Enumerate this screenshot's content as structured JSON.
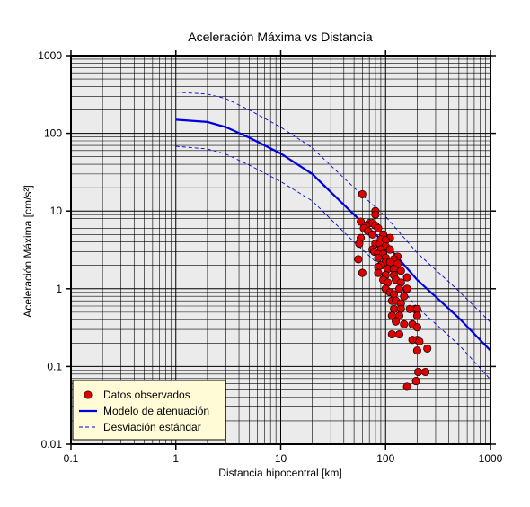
{
  "chart_data": {
    "type": "scatter",
    "title": "Aceleración Máxima vs Distancia",
    "xlabel": "Distancia hipocentral [km]",
    "ylabel": "Aceleración Máxima [cm/s²]",
    "xscale": "log",
    "yscale": "log",
    "xlim": [
      0.1,
      1000
    ],
    "ylim": [
      0.01,
      1000
    ],
    "x_tick_labels": [
      "0.1",
      "1",
      "10",
      "100",
      "1000"
    ],
    "y_tick_labels": [
      "0.01",
      "0.1",
      "1",
      "10",
      "100",
      "1000"
    ],
    "grid": true,
    "legend_position": "bottom-left",
    "series": [
      {
        "name": "Datos observados",
        "type": "scatter",
        "color": "#e00000",
        "points": [
          [
            60,
            16.5
          ],
          [
            80,
            10
          ],
          [
            80,
            9
          ],
          [
            58,
            7.3
          ],
          [
            70,
            7
          ],
          [
            75,
            7
          ],
          [
            65,
            6.5
          ],
          [
            80,
            6.5
          ],
          [
            62,
            6
          ],
          [
            85,
            6
          ],
          [
            68,
            5.5
          ],
          [
            75,
            5
          ],
          [
            95,
            5
          ],
          [
            58,
            4.5
          ],
          [
            110,
            4.5
          ],
          [
            90,
            4.3
          ],
          [
            100,
            4.2
          ],
          [
            56,
            3.8
          ],
          [
            80,
            3.8
          ],
          [
            88,
            3.8
          ],
          [
            100,
            3.5
          ],
          [
            75,
            3.2
          ],
          [
            90,
            3.2
          ],
          [
            110,
            3.2
          ],
          [
            78,
            3
          ],
          [
            85,
            2.8
          ],
          [
            95,
            2.8
          ],
          [
            130,
            2.6
          ],
          [
            85,
            2.5
          ],
          [
            100,
            2.5
          ],
          [
            55,
            2.4
          ],
          [
            120,
            2.4
          ],
          [
            100,
            2.2
          ],
          [
            110,
            2.2
          ],
          [
            130,
            2.1
          ],
          [
            90,
            2
          ],
          [
            85,
            1.9
          ],
          [
            105,
            1.8
          ],
          [
            120,
            1.8
          ],
          [
            140,
            1.7
          ],
          [
            85,
            1.6
          ],
          [
            60,
            1.6
          ],
          [
            100,
            1.5
          ],
          [
            120,
            1.5
          ],
          [
            160,
            1.4
          ],
          [
            95,
            1.3
          ],
          [
            125,
            1.3
          ],
          [
            105,
            1.2
          ],
          [
            140,
            1.2
          ],
          [
            100,
            1.0
          ],
          [
            135,
            1.0
          ],
          [
            160,
            1.0
          ],
          [
            110,
            0.9
          ],
          [
            120,
            0.85
          ],
          [
            150,
            0.8
          ],
          [
            115,
            0.7
          ],
          [
            125,
            0.7
          ],
          [
            140,
            0.65
          ],
          [
            120,
            0.55
          ],
          [
            140,
            0.55
          ],
          [
            170,
            0.55
          ],
          [
            190,
            0.55
          ],
          [
            200,
            0.55
          ],
          [
            115,
            0.45
          ],
          [
            135,
            0.45
          ],
          [
            200,
            0.45
          ],
          [
            125,
            0.38
          ],
          [
            150,
            0.35
          ],
          [
            180,
            0.35
          ],
          [
            200,
            0.32
          ],
          [
            115,
            0.26
          ],
          [
            135,
            0.26
          ],
          [
            180,
            0.22
          ],
          [
            200,
            0.22
          ],
          [
            210,
            0.21
          ],
          [
            250,
            0.17
          ],
          [
            200,
            0.16
          ],
          [
            205,
            0.085
          ],
          [
            240,
            0.085
          ],
          [
            195,
            0.065
          ],
          [
            160,
            0.055
          ]
        ]
      },
      {
        "name": "Modelo de atenuación",
        "type": "line",
        "color": "#0000e0",
        "points": [
          [
            1,
            150
          ],
          [
            2,
            140
          ],
          [
            3,
            120
          ],
          [
            5,
            88
          ],
          [
            10,
            55
          ],
          [
            20,
            30
          ],
          [
            50,
            9
          ],
          [
            100,
            3.8
          ],
          [
            200,
            1.3
          ],
          [
            500,
            0.42
          ],
          [
            1000,
            0.16
          ]
        ]
      },
      {
        "name": "Desviación estándar",
        "type": "line",
        "color": "#0000e0",
        "dashed": true,
        "points": [
          [
            1,
            340
          ],
          [
            2,
            320
          ],
          [
            3,
            280
          ],
          [
            5,
            200
          ],
          [
            10,
            120
          ],
          [
            20,
            65
          ],
          [
            50,
            20
          ],
          [
            100,
            8.5
          ],
          [
            200,
            2.9
          ],
          [
            500,
            0.93
          ],
          [
            1000,
            0.37
          ]
        ]
      },
      {
        "name": "Desviación estándar",
        "type": "line",
        "color": "#0000e0",
        "dashed": true,
        "show_in_legend": false,
        "points": [
          [
            1,
            68
          ],
          [
            2,
            63
          ],
          [
            3,
            54
          ],
          [
            5,
            39
          ],
          [
            10,
            24
          ],
          [
            20,
            13.5
          ],
          [
            50,
            4
          ],
          [
            100,
            1.7
          ],
          [
            200,
            0.58
          ],
          [
            500,
            0.19
          ],
          [
            1000,
            0.068
          ]
        ]
      }
    ],
    "legend": [
      "Datos observados",
      "Modelo de atenuación",
      "Desviación estándar"
    ]
  },
  "colors": {
    "plot_background": "#ebebeb",
    "legend_background": "#fffbd6",
    "grid_line": "#000000"
  }
}
